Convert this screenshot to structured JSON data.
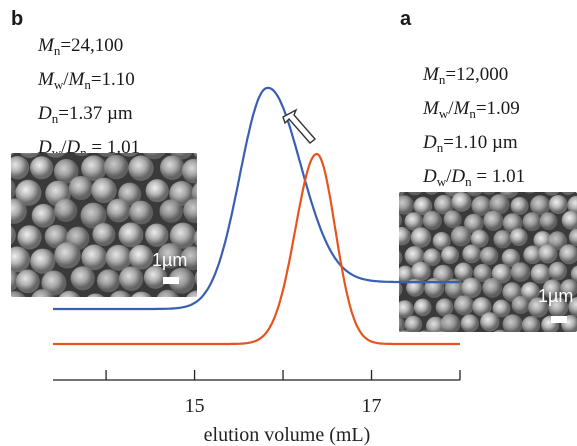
{
  "panels": {
    "b": {
      "letter": "b",
      "stats": [
        {
          "sym": "M",
          "sub": "n",
          "op": "=",
          "value": "24,100"
        },
        {
          "sym": "M",
          "sub": "w",
          "sym2": "M",
          "sub2": "n",
          "op": "=",
          "value": "1.10"
        },
        {
          "sym": "D",
          "sub": "n",
          "op": "=",
          "value": "1.37 µm"
        },
        {
          "sym": "D",
          "sub": "w",
          "sym2": "D",
          "sub2": "n",
          "op": " = ",
          "value": "1.01"
        }
      ],
      "scale_bar": "1µm"
    },
    "a": {
      "letter": "a",
      "stats": [
        {
          "sym": "M",
          "sub": "n",
          "op": "=",
          "value": "12,000"
        },
        {
          "sym": "M",
          "sub": "w",
          "sym2": "M",
          "sub2": "n",
          "op": "=",
          "value": "1.09"
        },
        {
          "sym": "D",
          "sub": "n",
          "op": "=",
          "value": "1.10 µm"
        },
        {
          "sym": "D",
          "sub": "w",
          "sym2": "D",
          "sub2": "n",
          "op": " = ",
          "value": "1.01"
        }
      ],
      "scale_bar": "1µm"
    }
  },
  "chart_data": {
    "type": "line",
    "xlabel": "elution volume (mL)",
    "xlim": [
      13.4,
      18.0
    ],
    "x_ticks_major": [
      15,
      17
    ],
    "x_ticks_minor": [
      14,
      16,
      18
    ],
    "series": [
      {
        "id": "b",
        "color": "#3a5fb0",
        "peak_x": 15.8,
        "sigma_left": 0.3,
        "sigma_right": 0.38,
        "baseline_left": 0.07,
        "baseline_right": 0.2,
        "peak_height": 1.0
      },
      {
        "id": "a",
        "color": "#e8541e",
        "peak_x": 16.38,
        "sigma_left": 0.24,
        "sigma_right": 0.21,
        "baseline_left": 0.0,
        "baseline_right": 0.0,
        "peak_height": 0.78
      }
    ],
    "annotation": {
      "type": "arrow",
      "direction": "toward-b"
    }
  }
}
